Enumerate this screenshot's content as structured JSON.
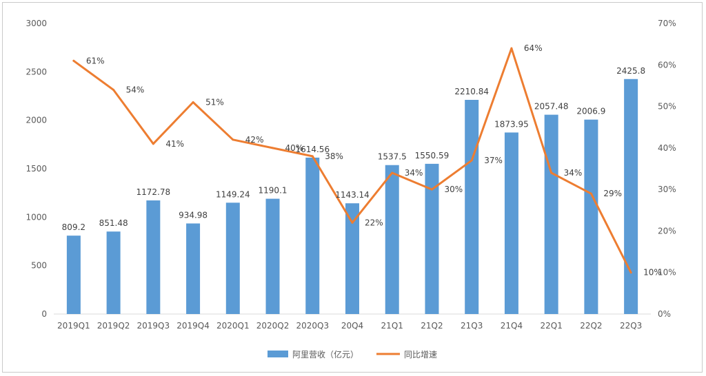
{
  "chart_data": {
    "type": "bar",
    "title": "",
    "categories": [
      "2019Q1",
      "2019Q2",
      "2019Q3",
      "2019Q4",
      "2020Q1",
      "2020Q2",
      "2020Q3",
      "20Q4",
      "21Q1",
      "21Q2",
      "21Q3",
      "21Q4",
      "22Q1",
      "22Q2",
      "22Q3"
    ],
    "series": [
      {
        "name": "阿里营收（亿元）",
        "type": "bar",
        "axis": "left",
        "color": "#5b9bd5",
        "values": [
          809.2,
          851.48,
          1172.78,
          934.98,
          1149.24,
          1190.1,
          1614.56,
          1143.14,
          1537.5,
          1550.59,
          2210.84,
          1873.95,
          2057.48,
          2006.9,
          2425.8
        ],
        "labels": [
          "809.2",
          "851.48",
          "1172.78",
          "934.98",
          "1149.24",
          "1190.1",
          "1614.56",
          "1143.14",
          "1537.5",
          "1550.59",
          "2210.84",
          "1873.95",
          "2057.48",
          "2006.9",
          "2425.8"
        ]
      },
      {
        "name": "同比增速",
        "type": "line",
        "axis": "right",
        "color": "#ed7d31",
        "values": [
          61,
          54,
          41,
          51,
          42,
          40,
          38,
          22,
          34,
          30,
          37,
          64,
          34,
          29,
          10
        ],
        "labels": [
          "61%",
          "54%",
          "41%",
          "51%",
          "42%",
          "40%",
          "38%",
          "22%",
          "34%",
          "30%",
          "37%",
          "64%",
          "34%",
          "29%",
          "10%"
        ]
      }
    ],
    "y_left": {
      "min": 0,
      "max": 3000,
      "step": 500,
      "ticks": [
        "0",
        "500",
        "1000",
        "1500",
        "2000",
        "2500",
        "3000"
      ]
    },
    "y_right": {
      "min": 0,
      "max": 70,
      "step": 10,
      "ticks": [
        "0%",
        "10%",
        "20%",
        "30%",
        "40%",
        "50%",
        "60%",
        "70%"
      ]
    },
    "grid": false,
    "legend_position": "bottom"
  }
}
